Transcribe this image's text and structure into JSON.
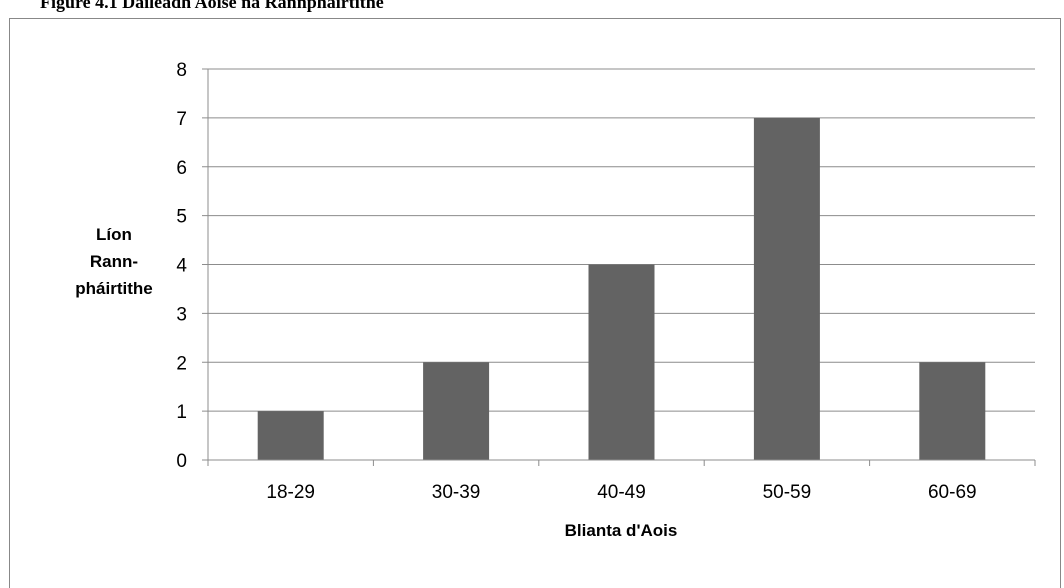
{
  "header": {
    "cut_title": "Figure 4.1 Dáileadh Aoise na Rannpháirtithe"
  },
  "chart_data": {
    "type": "bar",
    "categories": [
      "18-29",
      "30-39",
      "40-49",
      "50-59",
      "60-69"
    ],
    "values": [
      1,
      2,
      4,
      7,
      2
    ],
    "title": "",
    "xlabel": "Blianta d'Aois",
    "ylabel_lines": [
      "Líon",
      "Rann-",
      "pháirtithe"
    ],
    "ylim": [
      0,
      8
    ],
    "yticks": [
      0,
      1,
      2,
      3,
      4,
      5,
      6,
      7,
      8
    ],
    "grid": true,
    "legend": "none",
    "bar_color": "#636363",
    "grid_color": "#8c8c8c"
  }
}
